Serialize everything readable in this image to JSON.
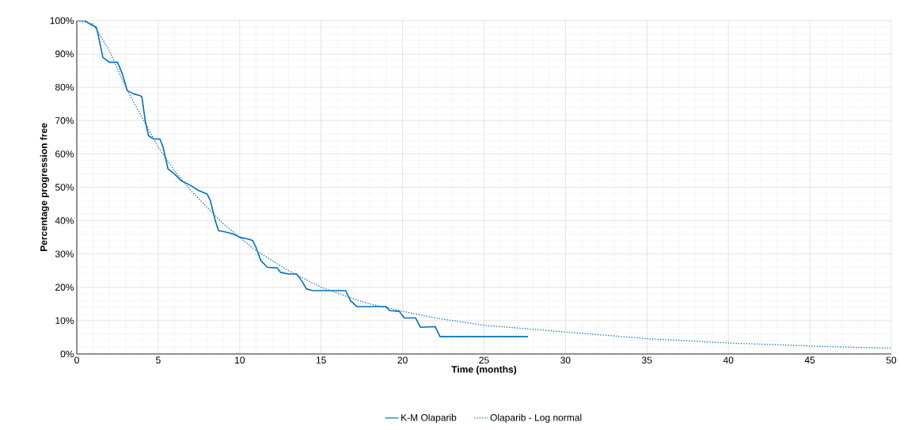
{
  "chart_data": {
    "type": "line",
    "xlabel": "Time (months)",
    "ylabel": "Percentage progression free",
    "xlim": [
      0,
      50
    ],
    "xticks": [
      0,
      5,
      10,
      15,
      20,
      25,
      30,
      35,
      40,
      45,
      50
    ],
    "ylim": [
      0,
      100
    ],
    "yticks": [
      {
        "value": 0,
        "label": "0%"
      },
      {
        "value": 10,
        "label": "10%"
      },
      {
        "value": 20,
        "label": "20%"
      },
      {
        "value": 30,
        "label": "30%"
      },
      {
        "value": 40,
        "label": "40%"
      },
      {
        "value": 50,
        "label": "50%"
      },
      {
        "value": 60,
        "label": "60%"
      },
      {
        "value": 70,
        "label": "70%"
      },
      {
        "value": 80,
        "label": "80%"
      },
      {
        "value": 90,
        "label": "90%"
      },
      {
        "value": 100,
        "label": "100%"
      }
    ],
    "grid": true,
    "legend": "bottom",
    "series": [
      {
        "name": "K-M Olaparib",
        "color": "#0070c0",
        "line_style": "solid",
        "x": [
          0,
          0.5,
          0.8,
          1.2,
          1.3,
          1.6,
          2,
          2.5,
          2.8,
          3.1,
          3.5,
          3.9,
          4.0,
          4.2,
          4.4,
          4.7,
          5.1,
          5.3,
          5.6,
          6.0,
          6.4,
          7,
          7.5,
          8,
          8.2,
          8.5,
          8.7,
          9.2,
          9.6,
          10,
          10.5,
          10.8,
          11,
          11.3,
          11.7,
          12.3,
          12.5,
          13,
          13.5,
          13.8,
          14.1,
          14.5,
          16,
          16.5,
          16.8,
          17.2,
          18,
          19,
          19.2,
          19.8,
          20.1,
          20.8,
          21.1,
          22,
          22.3,
          25,
          27.7
        ],
        "values": [
          100,
          100,
          99,
          98,
          96,
          89,
          87.5,
          87.5,
          84,
          79,
          78,
          77.5,
          77,
          70,
          65.5,
          64.5,
          64.5,
          62,
          55.5,
          54,
          52,
          50.5,
          49,
          48,
          46,
          40,
          37,
          36.5,
          36,
          35,
          34.5,
          34,
          32,
          28,
          26,
          25.8,
          24.5,
          24,
          24,
          22,
          19.5,
          19,
          19,
          19,
          16,
          14.2,
          14.2,
          14.2,
          13,
          12.8,
          10.8,
          10.8,
          8,
          8.2,
          5.2,
          5.2,
          5.2
        ]
      },
      {
        "name": "Olaparib - Log normal",
        "color": "#0070c0",
        "line_style": "dotted",
        "x": [
          0,
          1,
          2,
          3,
          4,
          5,
          6,
          7,
          8,
          9,
          10,
          11,
          12,
          13,
          14,
          15,
          16,
          17,
          18,
          20,
          22,
          25,
          30,
          35,
          40,
          45,
          50
        ],
        "values": [
          100,
          99,
          91,
          80,
          71,
          62,
          55,
          49,
          44,
          39,
          35,
          31,
          28,
          25,
          22.5,
          20,
          18.3,
          16.5,
          15,
          12.8,
          10.8,
          8.6,
          6.6,
          4.6,
          3.3,
          2.4,
          1.7
        ]
      }
    ]
  }
}
